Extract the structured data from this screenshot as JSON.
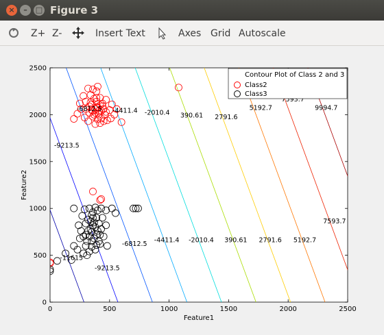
{
  "window": {
    "title": "Figure 3"
  },
  "toolbar": {
    "zoom_in": "Z+",
    "zoom_out": "Z-",
    "insert_text": "Insert Text",
    "axes": "Axes",
    "grid": "Grid",
    "autoscale": "Autoscale"
  },
  "colors": {
    "class2": "#ff0000",
    "class3": "#000000"
  },
  "chart_data": {
    "type": "scatter",
    "xlabel": "Feature1",
    "ylabel": "Feature2",
    "xlim": [
      0,
      2500
    ],
    "ylim": [
      0,
      2500
    ],
    "xticks": [
      "0",
      "500",
      "1000",
      "1500",
      "2000",
      "2500"
    ],
    "yticks": [
      "0",
      "500",
      "1000",
      "1500",
      "2000",
      "2500"
    ],
    "legend": {
      "placement": "top-right",
      "title": "Contour Plot of Class 2 and 3",
      "entries": [
        "Class2",
        "Class3"
      ]
    },
    "contour_levels": [
      {
        "value": -11615,
        "x_at_y0": 285,
        "color": "#0000aa"
      },
      {
        "value": -9213.5,
        "x_at_y0": 570,
        "color": "#0000ff"
      },
      {
        "value": -6812.5,
        "x_at_y0": 860,
        "color": "#0055ff"
      },
      {
        "value": -4411.4,
        "x_at_y0": 1150,
        "color": "#00aaff"
      },
      {
        "value": -2010.4,
        "x_at_y0": 1440,
        "color": "#00dddd"
      },
      {
        "value": 390.61,
        "x_at_y0": 1730,
        "color": "#aadd00"
      },
      {
        "value": 2791.6,
        "x_at_y0": 2020,
        "color": "#ffcc00"
      },
      {
        "value": 5192.7,
        "x_at_y0": 2310,
        "color": "#ff7700"
      },
      {
        "value": 7593.7,
        "x_at_y0": 2600,
        "color": "#ee2200"
      },
      {
        "value": 9994.7,
        "x_at_y0": 2890,
        "color": "#aa0000"
      }
    ],
    "contour_slope_dx_per_dy": -0.29,
    "contour_labels": [
      {
        "text": "-11615",
        "x": 180,
        "y": 450
      },
      {
        "text": "-9213.5",
        "x": 480,
        "y": 340
      },
      {
        "text": "-6812.5",
        "x": 710,
        "y": 600
      },
      {
        "text": "-4411.4",
        "x": 980,
        "y": 640
      },
      {
        "text": "-2010.4",
        "x": 1270,
        "y": 640
      },
      {
        "text": "390.61",
        "x": 1560,
        "y": 640
      },
      {
        "text": "2791.6",
        "x": 1850,
        "y": 640
      },
      {
        "text": "5192.7",
        "x": 2140,
        "y": 640
      },
      {
        "text": "7593.7",
        "x": 2390,
        "y": 840
      },
      {
        "text": "-9213.5",
        "x": 140,
        "y": 1650
      },
      {
        "text": "-6812.5",
        "x": 330,
        "y": 2040
      },
      {
        "text": "-4411.4",
        "x": 630,
        "y": 2020
      },
      {
        "text": "-2010.4",
        "x": 900,
        "y": 2000
      },
      {
        "text": "390.61",
        "x": 1190,
        "y": 1970
      },
      {
        "text": "2791.6",
        "x": 1480,
        "y": 1950
      },
      {
        "text": "5192.7",
        "x": 1770,
        "y": 2050
      },
      {
        "text": "7593.7",
        "x": 2040,
        "y": 2140
      },
      {
        "text": "9994.7",
        "x": 2320,
        "y": 2050
      }
    ],
    "series": [
      {
        "name": "Class2",
        "color": "#ff0000",
        "points": [
          [
            400,
            2080
          ],
          [
            350,
            2050
          ],
          [
            420,
            2100
          ],
          [
            380,
            2020
          ],
          [
            450,
            2060
          ],
          [
            330,
            2090
          ],
          [
            470,
            2030
          ],
          [
            390,
            2140
          ],
          [
            410,
            2000
          ],
          [
            360,
            1980
          ],
          [
            440,
            2120
          ],
          [
            300,
            2060
          ],
          [
            500,
            2050
          ],
          [
            430,
            1960
          ],
          [
            370,
            2170
          ],
          [
            340,
            2210
          ],
          [
            390,
            2250
          ],
          [
            320,
            2280
          ],
          [
            400,
            2300
          ],
          [
            360,
            2270
          ],
          [
            280,
            2200
          ],
          [
            250,
            2120
          ],
          [
            230,
            2010
          ],
          [
            290,
            1970
          ],
          [
            510,
            1960
          ],
          [
            540,
            2000
          ],
          [
            560,
            2060
          ],
          [
            480,
            1940
          ],
          [
            450,
            1930
          ],
          [
            600,
            1920
          ],
          [
            320,
            1930
          ],
          [
            380,
            1900
          ],
          [
            420,
            1910
          ],
          [
            470,
            2160
          ],
          [
            520,
            2110
          ],
          [
            340,
            2130
          ],
          [
            260,
            2060
          ],
          [
            380,
            2060
          ],
          [
            410,
            2040
          ],
          [
            440,
            2090
          ],
          [
            350,
            2110
          ],
          [
            330,
            2020
          ],
          [
            460,
            2000
          ],
          [
            400,
            1950
          ],
          [
            300,
            2140
          ],
          [
            420,
            2180
          ],
          [
            360,
            2040
          ],
          [
            390,
            2080
          ],
          [
            430,
            2040
          ],
          [
            370,
            2000
          ],
          [
            1080,
            2290
          ],
          [
            360,
            1180
          ],
          [
            430,
            1100
          ],
          [
            420,
            1090
          ],
          [
            0,
            425
          ],
          [
            0,
            415
          ],
          [
            200,
            1955
          ],
          [
            390,
            2180
          ]
        ]
      },
      {
        "name": "Class3",
        "color": "#000000",
        "points": [
          [
            350,
            750
          ],
          [
            380,
            800
          ],
          [
            330,
            700
          ],
          [
            400,
            760
          ],
          [
            360,
            820
          ],
          [
            320,
            760
          ],
          [
            420,
            720
          ],
          [
            370,
            680
          ],
          [
            340,
            860
          ],
          [
            390,
            900
          ],
          [
            310,
            650
          ],
          [
            430,
            780
          ],
          [
            360,
            960
          ],
          [
            400,
            980
          ],
          [
            330,
            1000
          ],
          [
            380,
            1010
          ],
          [
            300,
            600
          ],
          [
            410,
            650
          ],
          [
            350,
            590
          ],
          [
            280,
            700
          ],
          [
            260,
            760
          ],
          [
            300,
            840
          ],
          [
            440,
            900
          ],
          [
            470,
            820
          ],
          [
            450,
            700
          ],
          [
            420,
            620
          ],
          [
            380,
            560
          ],
          [
            330,
            540
          ],
          [
            310,
            500
          ],
          [
            280,
            520
          ],
          [
            230,
            560
          ],
          [
            200,
            600
          ],
          [
            250,
            680
          ],
          [
            240,
            820
          ],
          [
            270,
            920
          ],
          [
            290,
            990
          ],
          [
            430,
            1000
          ],
          [
            470,
            980
          ],
          [
            520,
            1000
          ],
          [
            550,
            950
          ],
          [
            360,
            900
          ],
          [
            350,
            650
          ],
          [
            390,
            720
          ],
          [
            340,
            780
          ],
          [
            370,
            850
          ],
          [
            320,
            880
          ],
          [
            410,
            840
          ],
          [
            300,
            720
          ],
          [
            390,
            610
          ],
          [
            350,
            930
          ],
          [
            700,
            1000
          ],
          [
            720,
            1000
          ],
          [
            740,
            1000
          ],
          [
            130,
            520
          ],
          [
            60,
            440
          ],
          [
            0,
            330
          ],
          [
            0,
            350
          ],
          [
            180,
            450
          ],
          [
            480,
            600
          ],
          [
            200,
            1000
          ]
        ]
      }
    ]
  }
}
